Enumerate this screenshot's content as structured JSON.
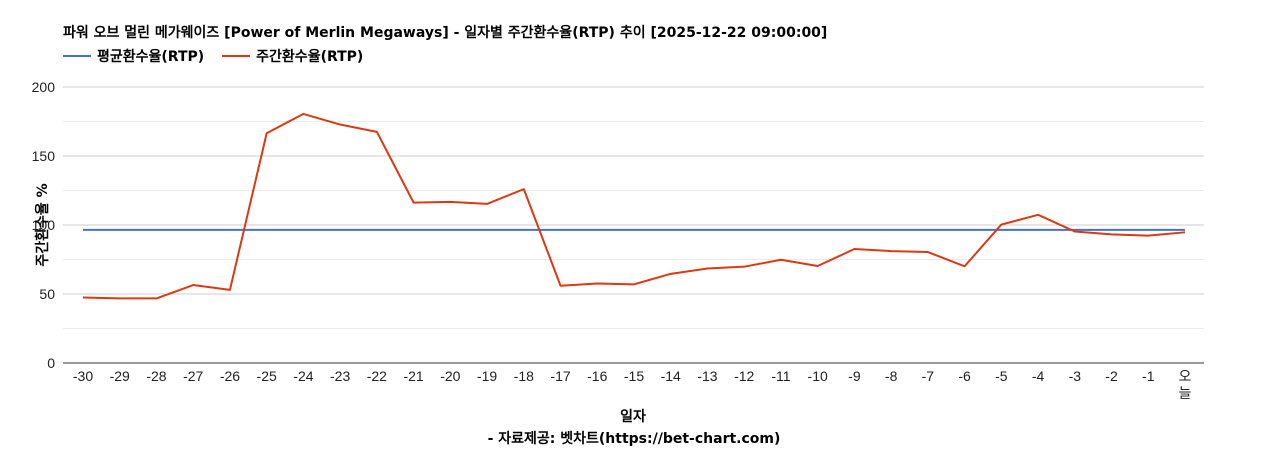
{
  "chart_data": {
    "type": "line",
    "title": "파워 오브 멀린 메가웨이즈 [Power of Merlin Megaways] - 일자별 주간환수율(RTP) 추이 [2025-12-22 09:00:00]",
    "xlabel": "일자",
    "ylabel": "주간환수율 %",
    "ylim": [
      0,
      200
    ],
    "yticks": [
      0,
      50,
      100,
      150,
      200
    ],
    "grid": true,
    "legend_position": "top-left",
    "categories": [
      "-30",
      "-29",
      "-28",
      "-27",
      "-26",
      "-25",
      "-24",
      "-23",
      "-22",
      "-21",
      "-20",
      "-19",
      "-18",
      "-17",
      "-16",
      "-15",
      "-14",
      "-13",
      "-12",
      "-11",
      "-10",
      "-9",
      "-8",
      "-7",
      "-6",
      "-5",
      "-4",
      "-3",
      "-2",
      "-1",
      "오늘"
    ],
    "series": [
      {
        "name": "평균환수율(RTP)",
        "color": "#4472c4",
        "values": [
          96.5,
          96.5,
          96.5,
          96.5,
          96.5,
          96.5,
          96.5,
          96.5,
          96.5,
          96.5,
          96.5,
          96.5,
          96.5,
          96.5,
          96.5,
          96.5,
          96.5,
          96.5,
          96.5,
          96.5,
          96.5,
          96.5,
          96.5,
          96.5,
          96.5,
          96.5,
          96.5,
          96.5,
          96.5,
          96.5,
          96.5
        ]
      },
      {
        "name": "주간환수율(RTP)",
        "color": "#dc3912",
        "values": [
          47.5,
          46.8,
          46.8,
          56.5,
          53.0,
          166.5,
          180.5,
          172.8,
          167.5,
          116.2,
          116.8,
          115.3,
          126.0,
          56.0,
          57.6,
          57.0,
          64.6,
          68.5,
          69.8,
          74.8,
          70.3,
          82.6,
          81.1,
          80.4,
          70.1,
          100.3,
          107.4,
          95.3,
          93.2,
          92.3,
          94.7
        ]
      }
    ],
    "source_note": "- 자료제공: 벳차트(https://bet-chart.com)"
  }
}
